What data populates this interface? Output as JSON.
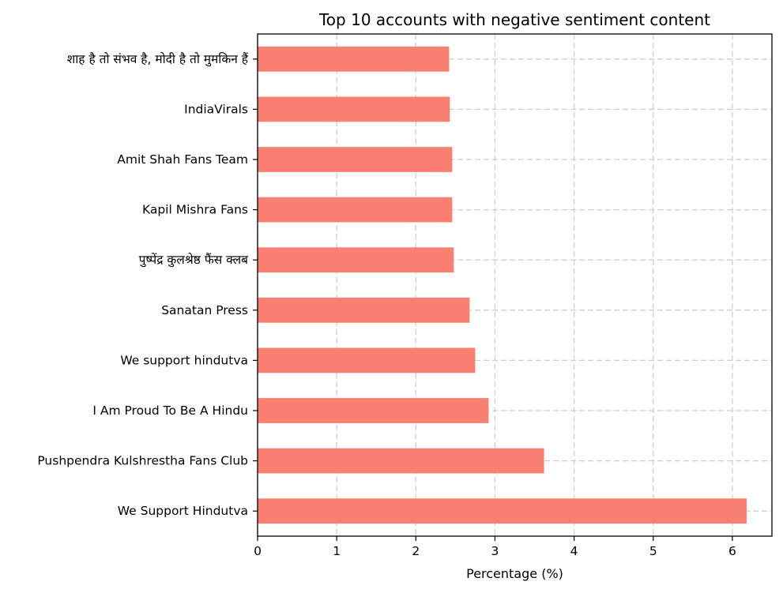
{
  "chart_data": {
    "type": "bar",
    "orientation": "horizontal",
    "title": "Top 10 accounts with negative sentiment content",
    "xlabel": "Percentage (%)",
    "ylabel": "",
    "xlim": [
      0,
      6.5
    ],
    "xticks": [
      0,
      1,
      2,
      3,
      4,
      5,
      6
    ],
    "grid": true,
    "bar_color": "#fa8072",
    "categories": [
      "We Support Hindutva",
      "Pushpendra Kulshrestha Fans Club",
      "I Am Proud To Be A Hindu",
      "We support hindutva",
      "Sanatan Press",
      "पुष्पेंद्र कुलश्रेष्ठ फैंस क्लब",
      "Kapil Mishra Fans",
      "Amit Shah Fans Team",
      "IndiaVirals",
      "शाह है तो संभव है, मोदी है तो मुमकिन हैं"
    ],
    "values": [
      6.18,
      3.62,
      2.92,
      2.75,
      2.68,
      2.48,
      2.46,
      2.46,
      2.43,
      2.42
    ]
  }
}
